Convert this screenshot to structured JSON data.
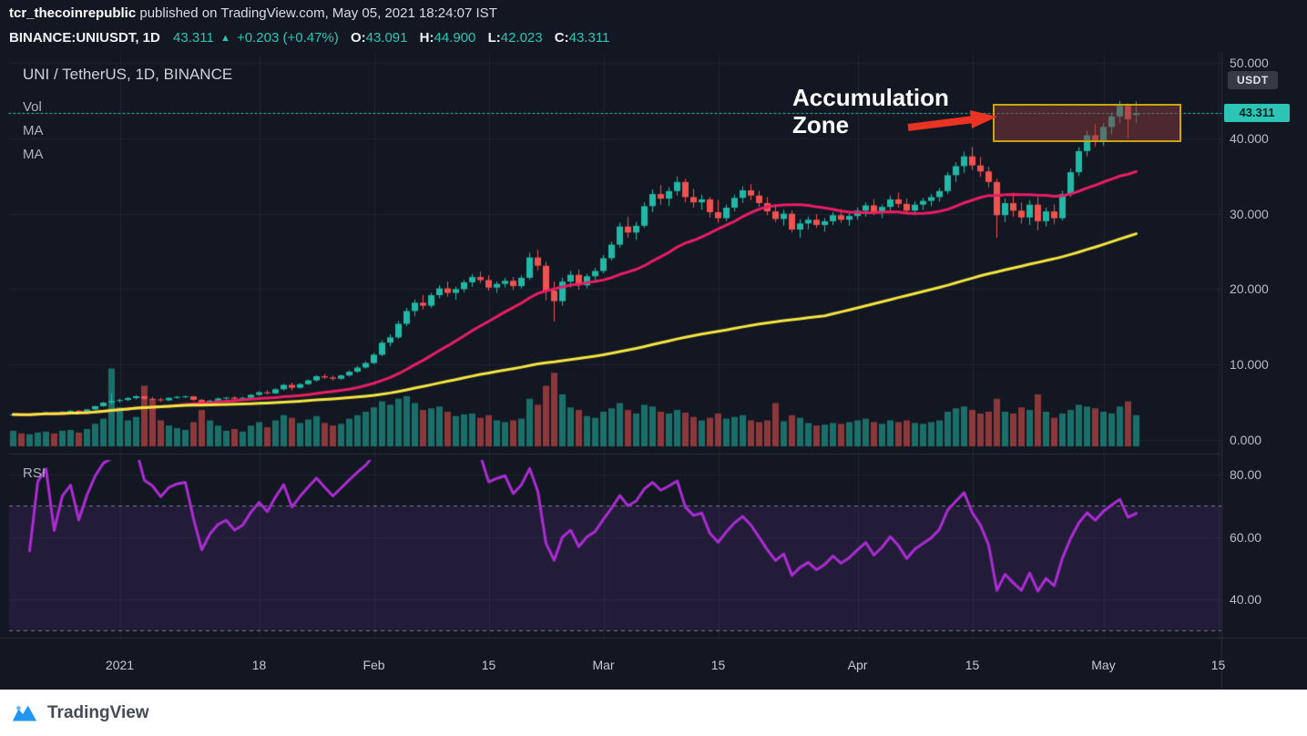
{
  "header": {
    "byline_user": "tcr_thecoinrepublic",
    "byline_rest": "published on TradingView.com, May 05, 2021 18:24:07 IST",
    "symbol": "BINANCE:UNIUSDT, 1D",
    "last_price": "43.311",
    "change_arrow": "▲",
    "change": "+0.203 (+0.47%)",
    "open_label": "O:",
    "open": "43.091",
    "high_label": "H:",
    "high": "44.900",
    "low_label": "L:",
    "low": "42.023",
    "close_label": "C:",
    "close": "43.311"
  },
  "legend": {
    "title": "UNI / TetherUS, 1D, BINANCE",
    "vol": "Vol",
    "ma1": "MA",
    "ma2": "MA"
  },
  "rsi_label": "RSI",
  "annotation": {
    "line1": "Accumulation",
    "line2": "Zone"
  },
  "axis": {
    "currency_badge": "USDT",
    "price_badge": "43.311"
  },
  "footer": {
    "brand": "TradingView"
  },
  "colors": {
    "background": "#131722",
    "accent_teal": "#2bc4b5",
    "candle_up": "#22b8a6",
    "candle_down": "#ef5350",
    "volume_up": "rgba(34,184,166,0.55)",
    "volume_down": "rgba(239,83,80,0.55)",
    "ma_fast_pink": "#e91e63",
    "ma_slow_yellow": "#f5e642",
    "rsi_purple": "#ab2dd2",
    "rsi_band": "rgba(149,64,217,0.13)",
    "zone_border": "#c6a712",
    "zone_fill": "rgba(136,58,58,0.5)",
    "annotation_red": "#ea3323",
    "grid": "rgba(240,243,250,0.06)",
    "divider": "#2a2e39",
    "axis_text": "#b7bbc6",
    "brand_blue": "#2196f3",
    "footer_bg": "#ffffff"
  },
  "chart_data": {
    "type": "candlestick",
    "title": "UNI / TetherUS, 1D, BINANCE",
    "symbol": "UNI/USDT",
    "exchange": "BINANCE",
    "interval": "1D",
    "start_date": "2020-12-19",
    "last_price": 43.311,
    "price_axis": {
      "currency": "USDT",
      "ticks": [
        {
          "label": "50.000",
          "value": 50
        },
        {
          "label": "40.000",
          "value": 40
        },
        {
          "label": "30.000",
          "value": 30
        },
        {
          "label": "20.000",
          "value": 20
        },
        {
          "label": "10.000",
          "value": 10
        },
        {
          "label": "0.000",
          "value": 0
        }
      ]
    },
    "rsi_axis": {
      "ticks": [
        {
          "label": "80.00",
          "value": 80
        },
        {
          "label": "60.00",
          "value": 60
        },
        {
          "label": "40.00",
          "value": 40
        }
      ],
      "overbought": 70,
      "oversold": 30
    },
    "time_axis": {
      "ticks": [
        {
          "label": "2021",
          "index": 13
        },
        {
          "label": "18",
          "index": 30
        },
        {
          "label": "Feb",
          "index": 44
        },
        {
          "label": "15",
          "index": 58
        },
        {
          "label": "Mar",
          "index": 72
        },
        {
          "label": "15",
          "index": 86
        },
        {
          "label": "Apr",
          "index": 103
        },
        {
          "label": "15",
          "index": 117
        },
        {
          "label": "May",
          "index": 133
        },
        {
          "label": "15",
          "index": 147
        }
      ]
    },
    "overlays": {
      "ma_fast_period": 20,
      "ma_slow_period": 100,
      "rsi_period": 14
    },
    "accumulation_zone": {
      "start_index": 120,
      "end_index": 142,
      "price_low": 39.5,
      "price_high": 44.6
    },
    "candle_format": [
      "open",
      "high",
      "low",
      "close",
      "volume_rel"
    ],
    "candles": [
      [
        3.3,
        3.45,
        3.15,
        3.38,
        18
      ],
      [
        3.38,
        3.5,
        3.25,
        3.3,
        15
      ],
      [
        3.3,
        3.42,
        3.18,
        3.4,
        14
      ],
      [
        3.4,
        3.62,
        3.35,
        3.58,
        16
      ],
      [
        3.58,
        3.75,
        3.5,
        3.66,
        17
      ],
      [
        3.66,
        3.72,
        3.42,
        3.52,
        15
      ],
      [
        3.52,
        3.8,
        3.48,
        3.76,
        18
      ],
      [
        3.76,
        3.95,
        3.65,
        3.88,
        19
      ],
      [
        3.88,
        3.98,
        3.6,
        3.72,
        16
      ],
      [
        3.72,
        4.1,
        3.68,
        4.05,
        20
      ],
      [
        4.05,
        4.55,
        3.95,
        4.48,
        26
      ],
      [
        4.48,
        5.05,
        4.4,
        4.95,
        32
      ],
      [
        4.95,
        6.2,
        4.7,
        5.18,
        90
      ],
      [
        5.18,
        5.48,
        4.95,
        5.3,
        45
      ],
      [
        5.3,
        5.7,
        5.15,
        5.55,
        30
      ],
      [
        5.55,
        5.95,
        5.35,
        5.8,
        34
      ],
      [
        5.8,
        5.9,
        5.3,
        5.45,
        70
      ],
      [
        5.45,
        5.72,
        5.22,
        5.38,
        55
      ],
      [
        5.38,
        5.58,
        5.05,
        5.25,
        30
      ],
      [
        5.25,
        5.65,
        5.18,
        5.58,
        24
      ],
      [
        5.58,
        5.85,
        5.48,
        5.72,
        21
      ],
      [
        5.72,
        5.9,
        5.55,
        5.78,
        19
      ],
      [
        5.78,
        5.85,
        5.15,
        5.32,
        28
      ],
      [
        5.32,
        5.45,
        4.52,
        4.82,
        42
      ],
      [
        4.82,
        5.32,
        4.68,
        5.22,
        30
      ],
      [
        5.22,
        5.62,
        5.08,
        5.5,
        24
      ],
      [
        5.5,
        5.72,
        5.35,
        5.62,
        18
      ],
      [
        5.62,
        5.8,
        5.28,
        5.46,
        20
      ],
      [
        5.46,
        5.7,
        5.36,
        5.6,
        17
      ],
      [
        5.6,
        6.12,
        5.52,
        5.98,
        24
      ],
      [
        5.98,
        6.45,
        5.85,
        6.32,
        28
      ],
      [
        6.32,
        6.6,
        6.02,
        6.18,
        22
      ],
      [
        6.18,
        6.85,
        6.08,
        6.72,
        30
      ],
      [
        6.72,
        7.45,
        6.55,
        7.3,
        36
      ],
      [
        7.3,
        7.6,
        6.58,
        6.92,
        33
      ],
      [
        6.92,
        7.55,
        6.82,
        7.4,
        27
      ],
      [
        7.4,
        8.05,
        7.28,
        7.9,
        31
      ],
      [
        7.9,
        8.6,
        7.72,
        8.45,
        35
      ],
      [
        8.45,
        8.75,
        8.08,
        8.28,
        27
      ],
      [
        8.28,
        8.55,
        7.88,
        8.12,
        24
      ],
      [
        8.12,
        8.7,
        7.98,
        8.55,
        26
      ],
      [
        8.55,
        9.22,
        8.4,
        9.05,
        32
      ],
      [
        9.05,
        9.82,
        8.88,
        9.6,
        36
      ],
      [
        9.6,
        10.42,
        9.45,
        10.2,
        40
      ],
      [
        10.2,
        11.52,
        10.05,
        11.3,
        45
      ],
      [
        11.3,
        13.22,
        11.1,
        12.9,
        52
      ],
      [
        12.9,
        14.02,
        12.4,
        13.6,
        48
      ],
      [
        13.6,
        15.82,
        13.4,
        15.4,
        55
      ],
      [
        15.4,
        17.52,
        15.1,
        17.1,
        58
      ],
      [
        17.1,
        18.62,
        16.4,
        18.2,
        50
      ],
      [
        18.2,
        19.22,
        17.3,
        17.8,
        42
      ],
      [
        17.8,
        19.52,
        17.5,
        19.2,
        44
      ],
      [
        19.2,
        20.52,
        18.8,
        20.1,
        46
      ],
      [
        20.1,
        21.02,
        19,
        19.5,
        40
      ],
      [
        19.5,
        20.32,
        18.6,
        20,
        35
      ],
      [
        20,
        21.22,
        19.6,
        20.9,
        37
      ],
      [
        20.9,
        22.02,
        20.3,
        21.6,
        38
      ],
      [
        21.6,
        22.32,
        20.8,
        21.2,
        33
      ],
      [
        21.2,
        21.82,
        19.8,
        20.2,
        36
      ],
      [
        20.2,
        21.02,
        19.5,
        20.7,
        30
      ],
      [
        20.7,
        21.52,
        20.2,
        21.1,
        28
      ],
      [
        21.1,
        21.62,
        19.9,
        20.4,
        30
      ],
      [
        20.4,
        21.82,
        20.1,
        21.5,
        32
      ],
      [
        21.5,
        24.82,
        21.2,
        24.2,
        55
      ],
      [
        24.2,
        25.22,
        22.5,
        23.1,
        48
      ],
      [
        23.1,
        23.62,
        18.52,
        19.8,
        70
      ],
      [
        19.8,
        21.02,
        15.72,
        18.4,
        85
      ],
      [
        18.4,
        21.52,
        17.8,
        21,
        60
      ],
      [
        21,
        22.42,
        20.2,
        21.9,
        45
      ],
      [
        21.9,
        22.62,
        19.92,
        20.5,
        42
      ],
      [
        20.5,
        22.02,
        20.1,
        21.7,
        35
      ],
      [
        21.7,
        22.82,
        21,
        22.4,
        33
      ],
      [
        22.4,
        24.52,
        22.1,
        24.1,
        40
      ],
      [
        24.1,
        26.32,
        23.8,
        25.9,
        44
      ],
      [
        25.9,
        28.82,
        25.5,
        28.3,
        50
      ],
      [
        28.3,
        29.62,
        26.8,
        27.5,
        42
      ],
      [
        27.5,
        28.92,
        26.5,
        28.4,
        38
      ],
      [
        28.4,
        31.52,
        28.1,
        31,
        48
      ],
      [
        31,
        33.22,
        30.2,
        32.6,
        46
      ],
      [
        32.6,
        33.82,
        31.2,
        32,
        40
      ],
      [
        32,
        33.52,
        31,
        33,
        38
      ],
      [
        33,
        34.92,
        32.4,
        34.2,
        42
      ],
      [
        34.2,
        34.62,
        31.5,
        32.2,
        39
      ],
      [
        32.2,
        33.32,
        30.8,
        31.5,
        34
      ],
      [
        31.5,
        32.52,
        30.5,
        31.9,
        30
      ],
      [
        31.9,
        32.22,
        29.5,
        30.2,
        33
      ],
      [
        30.2,
        31.82,
        28.8,
        29.4,
        38
      ],
      [
        29.4,
        31.22,
        29,
        30.8,
        32
      ],
      [
        30.8,
        32.52,
        30.3,
        32.1,
        34
      ],
      [
        32.1,
        33.62,
        31.4,
        33.1,
        36
      ],
      [
        33.1,
        33.92,
        31.8,
        32.4,
        30
      ],
      [
        32.4,
        33.02,
        30.9,
        31.4,
        28
      ],
      [
        31.4,
        32.22,
        29.8,
        30.3,
        30
      ],
      [
        30.3,
        31.02,
        28.9,
        29.3,
        50
      ],
      [
        29.3,
        30.52,
        28.4,
        30,
        29
      ],
      [
        30,
        30.42,
        27.5,
        27.9,
        36
      ],
      [
        27.9,
        29.22,
        26.8,
        28.7,
        33
      ],
      [
        28.7,
        29.62,
        27.9,
        29.2,
        27
      ],
      [
        29.2,
        29.92,
        28.1,
        28.5,
        24
      ],
      [
        28.5,
        29.42,
        27.6,
        29,
        25
      ],
      [
        29,
        30.22,
        28.5,
        29.8,
        27
      ],
      [
        29.8,
        30.62,
        28.8,
        29.2,
        26
      ],
      [
        29.2,
        30.12,
        28.4,
        29.7,
        28
      ],
      [
        29.7,
        30.82,
        29.2,
        30.4,
        30
      ],
      [
        30.4,
        31.52,
        29.6,
        31.1,
        32
      ],
      [
        31.1,
        31.92,
        29.8,
        30.2,
        28
      ],
      [
        30.2,
        31.22,
        29.4,
        30.9,
        26
      ],
      [
        30.9,
        32.42,
        30.3,
        31.9,
        30
      ],
      [
        31.9,
        32.82,
        30.8,
        31.3,
        28
      ],
      [
        31.3,
        32.02,
        29.9,
        30.4,
        30
      ],
      [
        30.4,
        31.62,
        29.8,
        31.2,
        27
      ],
      [
        31.2,
        32.12,
        30.5,
        31.7,
        26
      ],
      [
        31.7,
        32.62,
        31,
        32.2,
        28
      ],
      [
        32.2,
        33.42,
        31.6,
        33,
        30
      ],
      [
        33,
        35.52,
        32.6,
        35.1,
        40
      ],
      [
        35.1,
        36.82,
        34.2,
        36.3,
        44
      ],
      [
        36.3,
        38.22,
        35.4,
        37.6,
        46
      ],
      [
        37.6,
        38.82,
        35.8,
        36.4,
        42
      ],
      [
        36.4,
        37.52,
        34.9,
        35.6,
        38
      ],
      [
        35.6,
        36.22,
        33.5,
        34.2,
        40
      ],
      [
        34.2,
        34.62,
        26.8,
        29.8,
        55
      ],
      [
        29.8,
        32.02,
        28.9,
        31.4,
        40
      ],
      [
        31.4,
        32.82,
        29.6,
        30.4,
        38
      ],
      [
        30.4,
        31.52,
        28.7,
        29.5,
        45
      ],
      [
        29.5,
        31.82,
        28.5,
        31.2,
        42
      ],
      [
        31.2,
        32.22,
        27.8,
        29,
        60
      ],
      [
        29,
        30.82,
        28.3,
        30.3,
        40
      ],
      [
        30.3,
        31.22,
        28.6,
        29.4,
        33
      ],
      [
        29.4,
        33.02,
        29.1,
        32.6,
        38
      ],
      [
        32.6,
        36.02,
        32.2,
        35.5,
        42
      ],
      [
        35.5,
        38.82,
        35,
        38.3,
        48
      ],
      [
        38.3,
        41.02,
        37.6,
        40.4,
        46
      ],
      [
        40.4,
        41.92,
        38.9,
        39.6,
        44
      ],
      [
        39.6,
        42.02,
        39,
        41.5,
        40
      ],
      [
        41.5,
        43.42,
        40.5,
        42.9,
        38
      ],
      [
        42.9,
        44.95,
        42,
        44.3,
        46
      ],
      [
        44.3,
        44.62,
        40,
        42.5,
        52
      ],
      [
        43.091,
        44.9,
        42.023,
        43.311,
        36
      ]
    ]
  }
}
